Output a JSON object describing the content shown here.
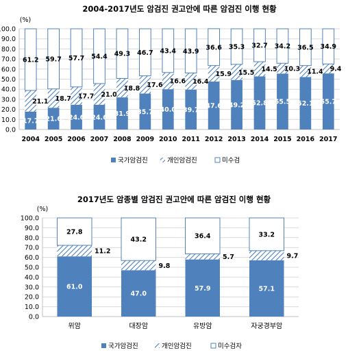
{
  "chart_data": [
    {
      "type": "bar",
      "stacked": true,
      "title": "2004-2017년도 암검진 권고안에 따른 암검진 이행 현황",
      "ylabel": "(%)",
      "ylim": [
        0,
        100
      ],
      "yticks": [
        0,
        10,
        20,
        30,
        40,
        50,
        60,
        70,
        80,
        90,
        100
      ],
      "grid": true,
      "legend_position": "bottom",
      "categories": [
        "2004",
        "2005",
        "2006",
        "2007",
        "2008",
        "2009",
        "2010",
        "2011",
        "2012",
        "2013",
        "2014",
        "2015",
        "2016",
        "2017"
      ],
      "series": [
        {
          "name": "국가암검진",
          "color": "#4f81bd",
          "pattern": "solid",
          "values": [
            17.7,
            21.6,
            24.6,
            24.6,
            31.9,
            35.7,
            40.0,
            39.7,
            47.6,
            49.2,
            52.8,
            55.5,
            52.1,
            55.7
          ]
        },
        {
          "name": "개인암검진",
          "color": "#4f81bd",
          "pattern": "hatch",
          "values": [
            21.1,
            18.7,
            17.7,
            21.0,
            18.8,
            17.6,
            16.6,
            16.4,
            15.9,
            15.5,
            14.5,
            10.3,
            11.4,
            9.4
          ]
        },
        {
          "name": "미수검",
          "color": "#4f81bd",
          "pattern": "outline",
          "values": [
            61.2,
            59.7,
            57.7,
            54.4,
            49.3,
            46.7,
            43.4,
            43.9,
            36.6,
            35.3,
            32.7,
            34.2,
            36.5,
            34.9
          ]
        }
      ]
    },
    {
      "type": "bar",
      "stacked": true,
      "title": "2017년도 암종별 암검진 권고안에 따른 암검진 이행 현황",
      "ylabel": "(%)",
      "ylim": [
        0,
        100
      ],
      "yticks": [
        0,
        10,
        20,
        30,
        40,
        50,
        60,
        70,
        80,
        90,
        100
      ],
      "grid": true,
      "legend_position": "bottom",
      "categories": [
        "위암",
        "대장암",
        "유방암",
        "자궁경부암"
      ],
      "series": [
        {
          "name": "국가암검진",
          "color": "#4f81bd",
          "pattern": "solid",
          "values": [
            61.0,
            47.0,
            57.9,
            57.1
          ]
        },
        {
          "name": "개인암검진",
          "color": "#4f81bd",
          "pattern": "hatch",
          "values": [
            11.2,
            9.8,
            5.7,
            9.7
          ]
        },
        {
          "name": "미수검자",
          "color": "#4f81bd",
          "pattern": "outline",
          "values": [
            27.8,
            43.2,
            36.4,
            33.2
          ]
        }
      ]
    }
  ]
}
